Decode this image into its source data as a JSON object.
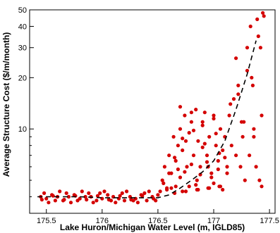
{
  "chart_data": {
    "type": "scatter",
    "xlabel": "Lake Huron/Michigan Water Level (m, IGLD85)",
    "ylabel": "Average Structure Cost ($/m/month)",
    "xlim": [
      175.35,
      177.55
    ],
    "ylim": [
      3.2,
      50
    ],
    "yscale": "log",
    "grid": false,
    "x_ticks": [
      175.5,
      176,
      176.5,
      177,
      177.5
    ],
    "x_tick_labels": [
      "175.5",
      "176",
      "176.5",
      "177",
      "177.5"
    ],
    "y_ticks": [
      10,
      20,
      30,
      40,
      50
    ],
    "y_tick_labels": [
      "10",
      "20",
      "30",
      "40",
      "50"
    ],
    "colors": {
      "points": "#d40000",
      "trend": "#000000"
    },
    "series": [
      {
        "kind": "points",
        "x": [
          175.45,
          175.5,
          175.55,
          175.6,
          175.65,
          175.7,
          175.75,
          175.8,
          175.85,
          175.9,
          175.95,
          176.0,
          176.05,
          176.1,
          176.15,
          176.2,
          176.25,
          176.3,
          176.35,
          176.4,
          176.45,
          176.5,
          175.48,
          175.58,
          175.68,
          175.78,
          175.88,
          175.98,
          176.08,
          176.18,
          176.28,
          176.38,
          176.48,
          175.52,
          175.62,
          175.72,
          175.82,
          175.92,
          176.02,
          176.12,
          176.22,
          176.32,
          176.42,
          175.46,
          175.56,
          175.66,
          175.76,
          175.86,
          175.96,
          176.06,
          176.16,
          176.26,
          176.36,
          176.46,
          176.52,
          176.54,
          176.56,
          176.58,
          176.6,
          176.62,
          176.64,
          176.66,
          176.68,
          176.7,
          176.72,
          176.74,
          176.76,
          176.78,
          176.8,
          176.82,
          176.84,
          176.86,
          176.88,
          176.9,
          176.92,
          176.94,
          176.96,
          176.98,
          177.0,
          177.02,
          177.04,
          177.06,
          177.08,
          177.1,
          177.12,
          176.55,
          176.6,
          176.65,
          176.7,
          176.75,
          176.8,
          176.85,
          176.9,
          176.95,
          177.0,
          177.05,
          177.1,
          176.62,
          176.68,
          176.72,
          176.78,
          176.82,
          176.88,
          176.92,
          176.98,
          177.02,
          177.08,
          176.58,
          176.66,
          176.74,
          176.84,
          176.94,
          177.04,
          176.7,
          176.8,
          176.9,
          177.0,
          176.75,
          176.85,
          176.95,
          177.05,
          176.65,
          176.72,
          176.86,
          176.96,
          177.06,
          177.12,
          177.14,
          177.16,
          177.18,
          177.2,
          177.22,
          177.24,
          177.26,
          177.28,
          177.3,
          177.15,
          177.2,
          177.25,
          177.3,
          177.32,
          177.34,
          177.36,
          177.38,
          177.33,
          177.35,
          177.22,
          177.27,
          177.36,
          177.39,
          177.4,
          177.42,
          177.43,
          177.44,
          177.45,
          177.41,
          177.43
        ],
        "y": [
          4.0,
          3.9,
          4.1,
          4.0,
          3.8,
          4.0,
          4.1,
          3.9,
          4.0,
          4.0,
          3.8,
          3.9,
          4.1,
          4.0,
          3.9,
          3.8,
          4.0,
          3.9,
          4.1,
          3.8,
          4.0,
          4.1,
          4.2,
          3.8,
          4.2,
          3.8,
          4.2,
          4.2,
          3.8,
          4.2,
          3.8,
          4.2,
          3.8,
          3.7,
          4.3,
          3.7,
          4.3,
          3.7,
          4.3,
          3.7,
          4.3,
          3.7,
          4.3,
          3.85,
          4.05,
          3.85,
          4.05,
          3.85,
          4.05,
          3.85,
          4.05,
          3.85,
          4.05,
          3.9,
          4.3,
          5.0,
          6.0,
          4.5,
          7.0,
          5.5,
          9.0,
          6.5,
          8.0,
          10.0,
          7.5,
          12.0,
          6.0,
          9.5,
          11.0,
          7.0,
          13.0,
          8.5,
          6.0,
          10.5,
          12.5,
          7.0,
          9.0,
          5.5,
          11.5,
          8.0,
          6.5,
          10.0,
          7.5,
          9.0,
          5.5,
          4.8,
          5.5,
          6.8,
          5.2,
          8.5,
          6.2,
          5.0,
          7.8,
          6.0,
          4.8,
          7.2,
          6.8,
          4.5,
          5.8,
          8.8,
          4.6,
          9.8,
          5.4,
          8.2,
          5.2,
          9.4,
          4.4,
          4.4,
          4.6,
          5.6,
          4.7,
          6.4,
          5.8,
          13.5,
          12.5,
          11.0,
          12.0,
          4.3,
          4.4,
          4.5,
          4.6,
          4.2,
          4.3,
          4.4,
          4.5,
          4.6,
          6.0,
          12.0,
          8.0,
          15.0,
          7.0,
          18.0,
          6.0,
          9.0,
          5.0,
          22.0,
          14.0,
          26.0,
          11.0,
          30.0,
          7.0,
          20.0,
          9.0,
          6.0,
          40.0,
          18.0,
          16.0,
          11.0,
          10.0,
          44.0,
          35.0,
          30.0,
          12.0,
          48.0,
          46.0,
          5.0,
          4.6
        ]
      },
      {
        "kind": "trend",
        "x": [
          175.42,
          175.6,
          175.8,
          176.0,
          176.2,
          176.4,
          176.5,
          176.6,
          176.7,
          176.8,
          176.9,
          177.0,
          177.1,
          177.2,
          177.3,
          177.38
        ],
        "y": [
          4.0,
          4.0,
          4.0,
          3.95,
          3.95,
          3.95,
          3.95,
          4.1,
          4.5,
          5.0,
          5.6,
          6.5,
          8.5,
          13.0,
          21.0,
          33.0
        ]
      }
    ]
  }
}
